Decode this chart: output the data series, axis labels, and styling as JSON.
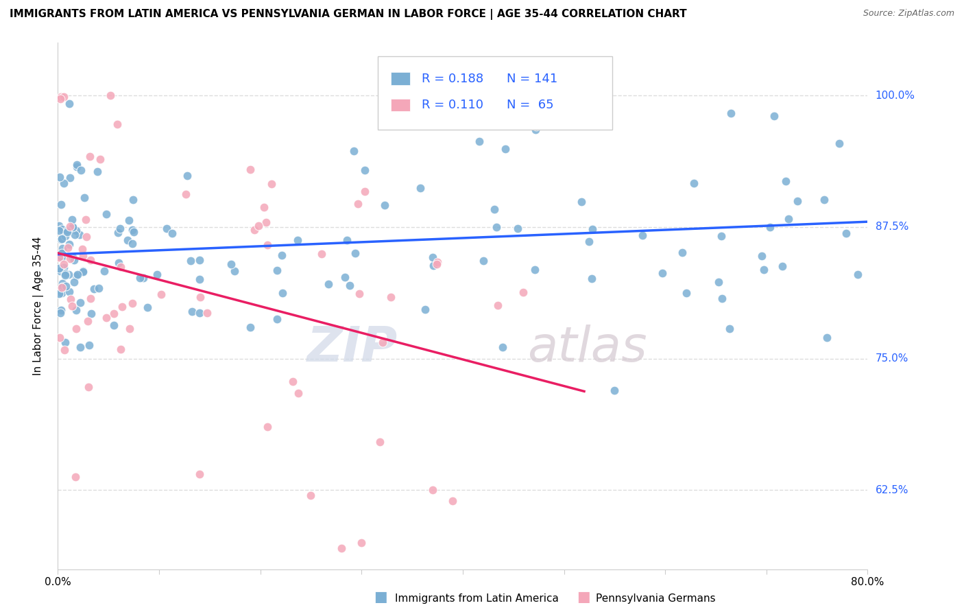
{
  "title": "IMMIGRANTS FROM LATIN AMERICA VS PENNSYLVANIA GERMAN IN LABOR FORCE | AGE 35-44 CORRELATION CHART",
  "source": "Source: ZipAtlas.com",
  "ylabel": "In Labor Force | Age 35-44",
  "ytick_labels": [
    "62.5%",
    "75.0%",
    "87.5%",
    "100.0%"
  ],
  "ytick_values": [
    0.625,
    0.75,
    0.875,
    1.0
  ],
  "xlim": [
    0.0,
    0.8
  ],
  "ylim": [
    0.55,
    1.05
  ],
  "blue_color": "#7bafd4",
  "pink_color": "#f4a7b9",
  "blue_line_color": "#2962ff",
  "pink_line_color": "#e91e63",
  "blue_R": 0.188,
  "blue_N": 141,
  "pink_R": 0.11,
  "pink_N": 65,
  "legend_label_blue": "Immigrants from Latin America",
  "legend_label_pink": "Pennsylvania Germans",
  "watermark_text": "ZIP",
  "watermark_text2": "atlas",
  "background_color": "#ffffff",
  "grid_color": "#dddddd",
  "title_fontsize": 11,
  "axis_label_fontsize": 11,
  "tick_fontsize": 11,
  "legend_fontsize": 13
}
